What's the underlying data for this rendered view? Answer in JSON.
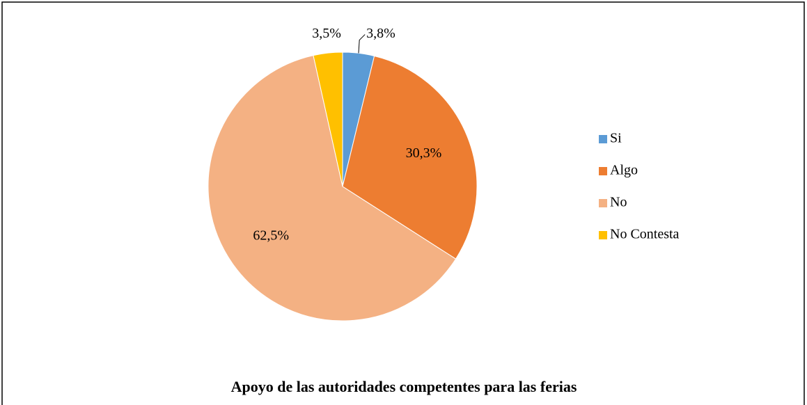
{
  "chart_data": {
    "type": "pie",
    "title": "Apoyo de las autoridades competentes para las ferias",
    "categories": [
      "Si",
      "Algo",
      "No",
      "No Contesta"
    ],
    "values": [
      3.8,
      30.3,
      62.5,
      3.5
    ],
    "value_labels": [
      "3,8%",
      "30,3%",
      "62,5%",
      "3,5%"
    ],
    "colors": [
      "#5b9bd5",
      "#ed7d31",
      "#f4b183",
      "#ffc000"
    ],
    "legend": "right"
  }
}
